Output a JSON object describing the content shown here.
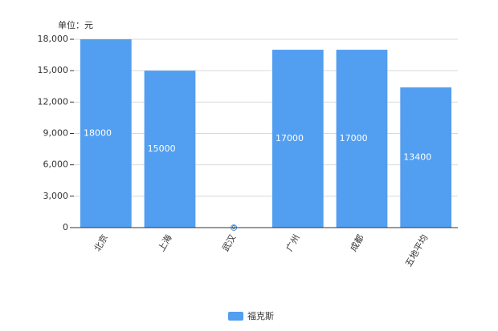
{
  "chart_data": {
    "type": "bar",
    "unit_label": "单位：元",
    "categories": [
      "北京",
      "上海",
      "武汉",
      "广州",
      "成都",
      "五地平均"
    ],
    "series": [
      {
        "name": "福克斯",
        "color": "#529ef0",
        "values": [
          18000,
          15000,
          0,
          17000,
          17000,
          13400
        ]
      }
    ],
    "ylim": [
      0,
      18000
    ],
    "yticks": [
      0,
      {
        "value": 3000,
        "label": "3,000"
      },
      {
        "value": 6000,
        "label": "6,000"
      },
      {
        "value": 9000,
        "label": "9,000"
      },
      {
        "value": 12000,
        "label": "12,000"
      },
      {
        "value": 15000,
        "label": "15,000"
      },
      {
        "value": 18000,
        "label": "18,000"
      }
    ],
    "grid": true
  }
}
